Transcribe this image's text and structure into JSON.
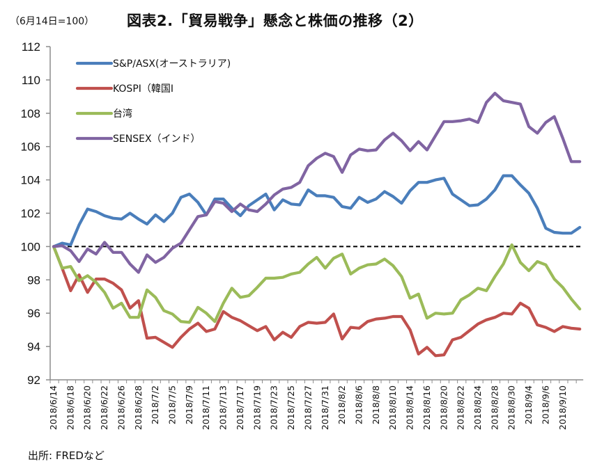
{
  "header": {
    "unit_label": "（6月14日=100）",
    "title": "図表2.「貿易戦争」懸念と株価の推移（2）"
  },
  "footer": {
    "source": "出所: FREDなど"
  },
  "chart_data": {
    "type": "line",
    "title": "図表2.「貿易戦争」懸念と株価の推移（2）",
    "ylabel": "（6月14日=100）",
    "xlabel": "",
    "ylim": [
      92,
      112
    ],
    "yticks": [
      92,
      94,
      96,
      98,
      100,
      102,
      104,
      106,
      108,
      110,
      112
    ],
    "ytick_labels": [
      "92",
      "94",
      "96",
      "98",
      "100",
      "102",
      "104",
      "106",
      "108",
      "110",
      "112"
    ],
    "grid": false,
    "reference_line": {
      "value": 100,
      "style": "dashed",
      "color": "#000000"
    },
    "legend_position": "top-left",
    "x_count": 63,
    "x_tick_labels": [
      "2018/6/14",
      "2018/6/18",
      "2018/6/20",
      "2018/6/22",
      "2018/6/26",
      "2018/6/28",
      "2018/7/2",
      "2018/7/5",
      "2018/7/9",
      "2018/7/11",
      "2018/7/13",
      "2018/7/17",
      "2018/7/19",
      "2018/7/23",
      "2018/7/25",
      "2018/7/27",
      "2018/7/31",
      "2018/8/2",
      "2018/8/6",
      "2018/8/8",
      "2018/8/10",
      "2018/8/14",
      "2018/8/16",
      "2018/8/20",
      "2018/8/22",
      "2018/8/24",
      "2018/8/28",
      "2018/8/30",
      "2018/9/4",
      "2018/9/6",
      "2018/9/10"
    ],
    "x_tick_label_every": 2,
    "series": [
      {
        "name": "S&P/ASX(オーストラリア)",
        "color": "#4A7EBB",
        "values": [
          100.0,
          100.2,
          100.1,
          101.3,
          102.25,
          102.1,
          101.85,
          101.7,
          101.65,
          102.0,
          101.65,
          101.35,
          101.9,
          101.5,
          102.0,
          102.95,
          103.15,
          102.65,
          101.9,
          102.85,
          102.85,
          102.3,
          101.85,
          102.45,
          102.8,
          103.15,
          102.2,
          102.8,
          102.55,
          102.5,
          103.4,
          103.05,
          103.05,
          102.95,
          102.4,
          102.3,
          102.95,
          102.65,
          102.85,
          103.3,
          103.0,
          102.6,
          103.35,
          103.85,
          103.85,
          104.0,
          104.1,
          103.15,
          102.8,
          102.45,
          102.5,
          102.85,
          103.4,
          104.25,
          104.25,
          103.7,
          103.2,
          102.3,
          101.1,
          100.85,
          100.8,
          100.8,
          101.15
        ]
      },
      {
        "name": "KOSPI（韓国I",
        "color": "#C0504D",
        "values": [
          100.0,
          98.7,
          97.35,
          98.3,
          97.25,
          98.05,
          98.05,
          97.8,
          97.4,
          96.3,
          96.75,
          94.5,
          94.55,
          94.25,
          93.95,
          94.55,
          95.05,
          95.4,
          94.9,
          95.05,
          96.1,
          95.75,
          95.55,
          95.25,
          94.95,
          95.2,
          94.4,
          94.85,
          94.55,
          95.2,
          95.45,
          95.4,
          95.45,
          95.95,
          94.45,
          95.15,
          95.1,
          95.5,
          95.65,
          95.7,
          95.8,
          95.8,
          95.0,
          93.55,
          93.95,
          93.45,
          93.5,
          94.4,
          94.55,
          94.95,
          95.35,
          95.6,
          95.75,
          96.0,
          95.95,
          96.6,
          96.3,
          95.3,
          95.15,
          94.9,
          95.2,
          95.1,
          95.05
        ]
      },
      {
        "name": "台湾",
        "color": "#9BBB59",
        "values": [
          100.0,
          98.7,
          98.8,
          97.95,
          98.25,
          97.85,
          97.25,
          96.3,
          96.6,
          95.75,
          95.75,
          97.4,
          96.95,
          96.15,
          95.95,
          95.5,
          95.45,
          96.35,
          96.0,
          95.5,
          96.6,
          97.5,
          96.95,
          97.05,
          97.55,
          98.1,
          98.1,
          98.15,
          98.35,
          98.45,
          98.95,
          99.35,
          98.7,
          99.3,
          99.55,
          98.35,
          98.7,
          98.9,
          98.95,
          99.25,
          98.85,
          98.2,
          96.9,
          97.15,
          95.7,
          96.0,
          95.95,
          96.0,
          96.8,
          97.1,
          97.5,
          97.35,
          98.2,
          98.95,
          100.1,
          99.05,
          98.55,
          99.1,
          98.9,
          98.05,
          97.55,
          96.85,
          96.25
        ]
      },
      {
        "name": "SENSEX（インド）",
        "color": "#8064A2",
        "values": [
          100.0,
          100.05,
          99.75,
          99.1,
          99.85,
          99.55,
          100.25,
          99.65,
          99.65,
          98.95,
          98.45,
          99.5,
          99.05,
          99.35,
          99.9,
          100.2,
          101.0,
          101.8,
          101.9,
          102.7,
          102.6,
          102.1,
          102.55,
          102.2,
          102.1,
          102.55,
          103.1,
          103.45,
          103.55,
          103.85,
          104.85,
          105.3,
          105.6,
          105.4,
          104.45,
          105.5,
          105.85,
          105.75,
          105.8,
          106.4,
          106.8,
          106.35,
          105.75,
          106.3,
          105.8,
          106.65,
          107.5,
          107.5,
          107.55,
          107.65,
          107.45,
          108.65,
          109.2,
          108.75,
          108.65,
          108.55,
          107.2,
          106.8,
          107.45,
          107.8,
          106.5,
          105.1,
          105.1
        ]
      }
    ]
  }
}
